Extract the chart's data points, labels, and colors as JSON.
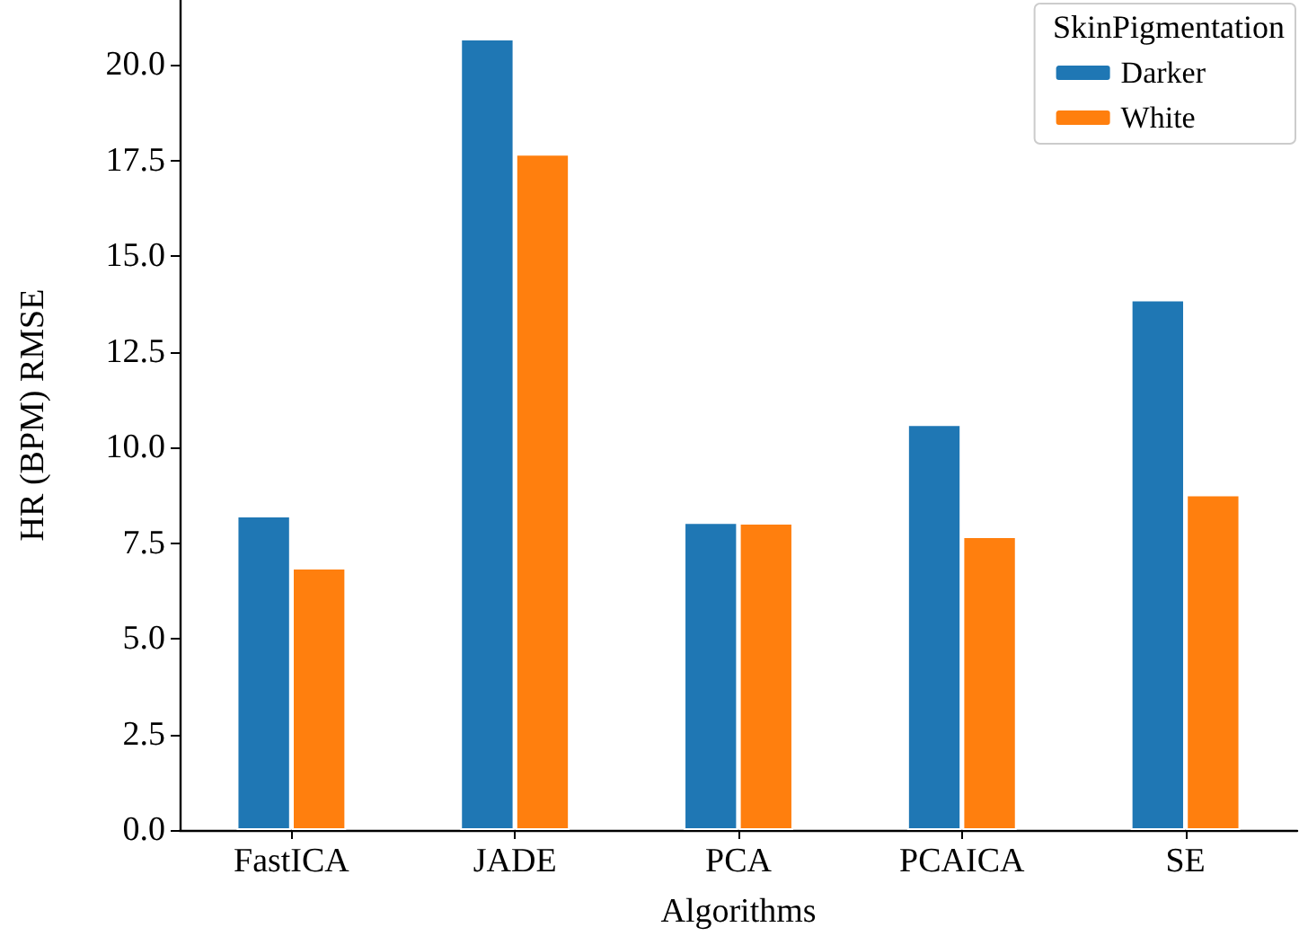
{
  "chart_data": {
    "type": "bar",
    "xlabel": "Algorithms",
    "ylabel": "HR (BPM) RMSE",
    "legend_title": "SkinPigmentation",
    "legend": "top right",
    "grid": false,
    "categories": [
      "FastICA",
      "JADE",
      "PCA",
      "PCAICA",
      "SE"
    ],
    "series": [
      {
        "name": "Darker",
        "color": "#1f77b4",
        "values": [
          8.22,
          20.69,
          8.05,
          10.61,
          13.87
        ]
      },
      {
        "name": "White",
        "color": "#ff7f0e",
        "values": [
          6.86,
          17.68,
          8.03,
          7.68,
          8.77
        ]
      }
    ],
    "ylim": [
      0,
      21.7
    ],
    "yticks": [
      {
        "value": 0,
        "label": "0.0"
      },
      {
        "value": 2.5,
        "label": "2.5"
      },
      {
        "value": 5,
        "label": "5.0"
      },
      {
        "value": 7.5,
        "label": "7.5"
      },
      {
        "value": 10,
        "label": "10.0"
      },
      {
        "value": 12.5,
        "label": "12.5"
      },
      {
        "value": 15,
        "label": "15.0"
      },
      {
        "value": 17.5,
        "label": "17.5"
      },
      {
        "value": 20,
        "label": "20.0"
      }
    ]
  }
}
